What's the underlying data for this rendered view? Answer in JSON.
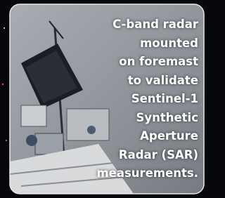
{
  "caption": {
    "lines": [
      "C-band radar",
      "mounted",
      "on foremast",
      "to validate",
      "Sentinel-1",
      "Synthetic",
      "Aperture",
      "Radar (SAR)",
      "measurements."
    ]
  }
}
